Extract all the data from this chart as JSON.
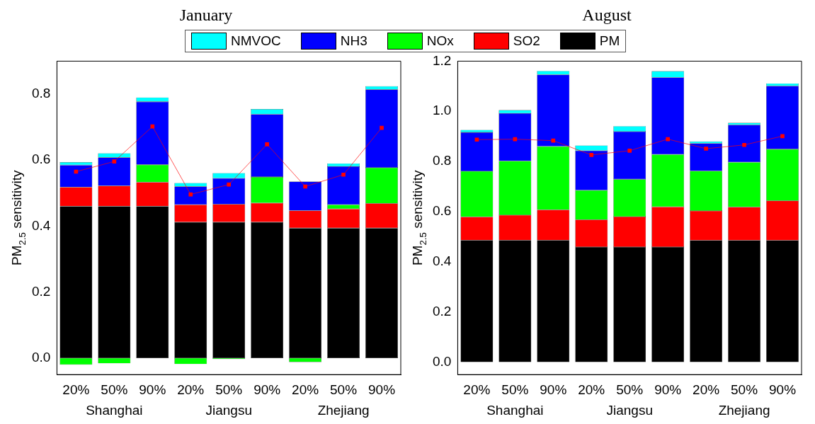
{
  "chart_data": [
    {
      "type": "bar",
      "title": "January",
      "stacked": true,
      "legend": "top",
      "ylabel": "PM$_{2.5}$ sensitivity",
      "categories": [
        "20%",
        "50%",
        "90%",
        "20%",
        "50%",
        "90%",
        "20%",
        "50%",
        "90%"
      ],
      "annotations": [
        "Shanghai",
        "Jiangsu",
        "Zhejiang"
      ],
      "ylim": [
        -0.05,
        0.9
      ],
      "yticks": [
        {
          "value": 0,
          "label": "0.0"
        },
        {
          "value": 0.2,
          "label": "0.2"
        },
        {
          "value": 0.4,
          "label": "0.4"
        },
        {
          "value": 0.6,
          "label": "0.6"
        },
        {
          "value": 0.8,
          "label": "0.8"
        }
      ],
      "series": [
        {
          "name": "PM",
          "color": "#000000",
          "values": [
            0.46,
            0.46,
            0.46,
            0.412,
            0.412,
            0.412,
            0.394,
            0.394,
            0.394
          ]
        },
        {
          "name": "SO2",
          "color": "#ff0000",
          "values": [
            0.058,
            0.062,
            0.073,
            0.053,
            0.054,
            0.058,
            0.053,
            0.058,
            0.075
          ]
        },
        {
          "name": "NOx",
          "color": "#00ff00",
          "values": [
            -0.02,
            -0.016,
            0.053,
            -0.018,
            -0.003,
            0.079,
            -0.012,
            0.013,
            0.108
          ]
        },
        {
          "name": "NH3",
          "color": "#0000ff",
          "values": [
            0.067,
            0.086,
            0.191,
            0.055,
            0.079,
            0.19,
            0.088,
            0.116,
            0.237
          ]
        },
        {
          "name": "NMVOC",
          "color": "#00ffff",
          "values": [
            0.009,
            0.013,
            0.013,
            0.011,
            0.016,
            0.016,
            null,
            0.009,
            0.01
          ]
        },
        {
          "type": "line",
          "color": "#ff0000",
          "marker": "square",
          "values": [
            0.565,
            0.596,
            0.702,
            0.496,
            0.526,
            0.648,
            0.52,
            0.556,
            0.698
          ]
        }
      ]
    },
    {
      "type": "bar",
      "title": "August",
      "stacked": true,
      "ylabel": "PM$_{2.5}$ sensitivity",
      "categories": [
        "20%",
        "50%",
        "90%",
        "20%",
        "50%",
        "90%",
        "20%",
        "50%",
        "90%"
      ],
      "annotations": [
        "Shanghai",
        "Jiangsu",
        "Zhejiang"
      ],
      "ylim": [
        -0.05,
        1.2
      ],
      "yticks": [
        {
          "value": 0,
          "label": "0.0"
        },
        {
          "value": 0.2,
          "label": "0.2"
        },
        {
          "value": 0.4,
          "label": "0.4"
        },
        {
          "value": 0.6,
          "label": "0.6"
        },
        {
          "value": 0.8,
          "label": "0.8"
        },
        {
          "value": 1,
          "label": "1.0"
        },
        {
          "value": 1.2,
          "label": "1.2"
        }
      ],
      "series": [
        {
          "color": "#000000",
          "values": [
            0.486,
            0.486,
            0.486,
            0.459,
            0.459,
            0.459,
            0.485,
            0.485,
            0.485
          ]
        },
        {
          "color": "#ff0000",
          "values": [
            0.093,
            0.1,
            0.121,
            0.109,
            0.121,
            0.16,
            0.118,
            0.133,
            0.158
          ]
        },
        {
          "color": "#00ff00",
          "values": [
            0.182,
            0.216,
            0.253,
            0.117,
            0.149,
            0.209,
            0.159,
            0.179,
            0.206
          ]
        },
        {
          "color": "#0000ff",
          "values": [
            0.155,
            0.19,
            0.286,
            0.158,
            0.19,
            0.307,
            0.11,
            0.149,
            0.252
          ]
        },
        {
          "color": "#00ffff",
          "values": [
            0.01,
            0.013,
            0.015,
            0.021,
            0.022,
            0.025,
            0.008,
            0.008,
            0.01
          ]
        },
        {
          "type": "line",
          "color": "#ff0000",
          "marker": "square",
          "values": [
            0.887,
            0.889,
            0.883,
            0.826,
            0.843,
            0.889,
            0.851,
            0.866,
            0.901
          ]
        }
      ]
    }
  ]
}
